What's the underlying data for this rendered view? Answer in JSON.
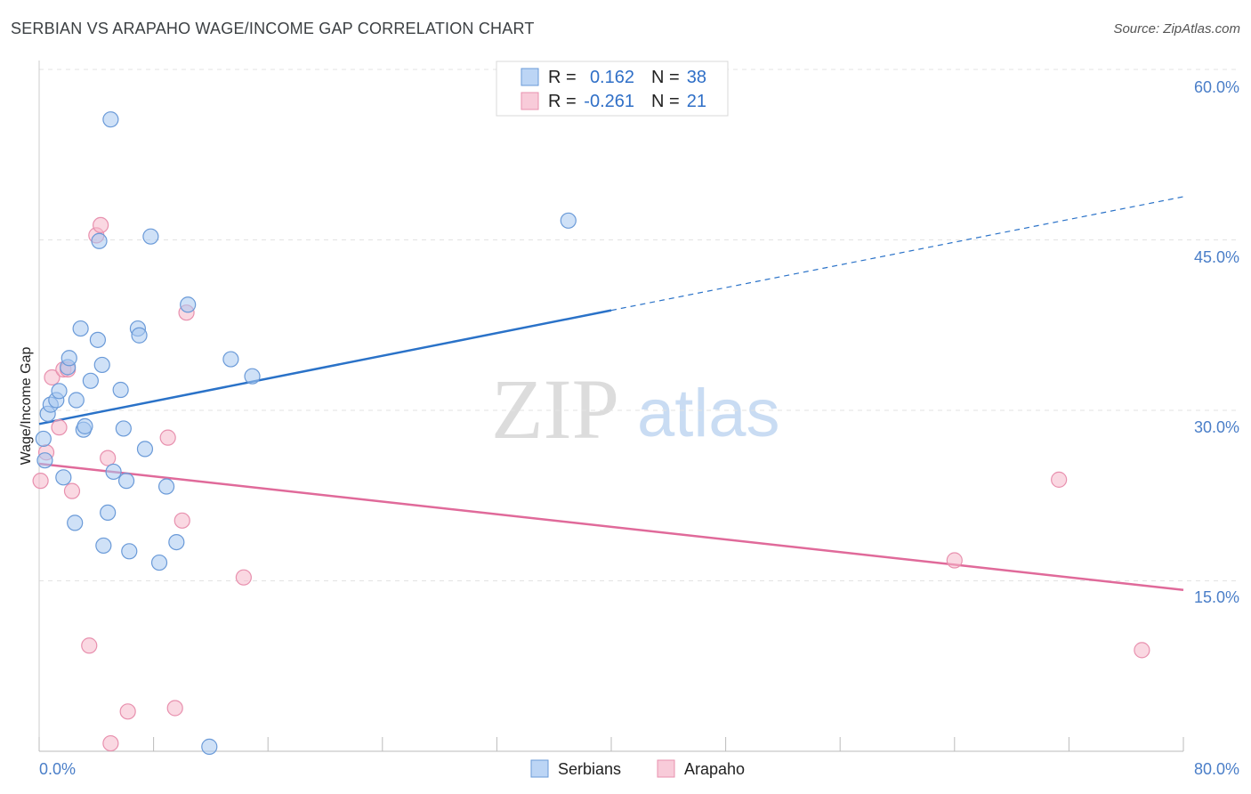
{
  "title": "SERBIAN VS ARAPAHO WAGE/INCOME GAP CORRELATION CHART",
  "source": "Source: ZipAtlas.com",
  "watermark": {
    "zip": "ZIP",
    "atlas": "atlas"
  },
  "colors": {
    "serbians_fill": "#a8c8f0",
    "serbians_stroke": "#6a9ad8",
    "serbians_line": "#2a72c8",
    "arapaho_fill": "#f5b8cb",
    "arapaho_stroke": "#e890ae",
    "arapaho_line": "#e06a9a",
    "grid": "#e3e3e3",
    "tick_label": "#4a7ec8"
  },
  "legend": {
    "r_label": "R =",
    "n_label": "N =",
    "rows": [
      {
        "series": "Serbians",
        "r": "0.162",
        "n": "38"
      },
      {
        "series": "Arapaho",
        "r": "-0.261",
        "n": "21"
      }
    ]
  },
  "bottom_legend": [
    "Serbians",
    "Arapaho"
  ],
  "chart_data": {
    "type": "scatter",
    "title": "SERBIAN VS ARAPAHO WAGE/INCOME GAP CORRELATION CHART",
    "xlabel": "",
    "ylabel": "Wage/Income Gap",
    "xlim": [
      0,
      80
    ],
    "ylim": [
      0,
      60
    ],
    "x_tick_labels": [
      "0.0%",
      "80.0%"
    ],
    "y_ticks": [
      15,
      30,
      45,
      60
    ],
    "y_tick_labels": [
      "15.0%",
      "30.0%",
      "45.0%",
      "60.0%"
    ],
    "x_minor_ticks": [
      0,
      8,
      16,
      24,
      32,
      40,
      48,
      56,
      64,
      72,
      80
    ],
    "grid": true,
    "series": [
      {
        "name": "Serbians",
        "points": [
          [
            0.6,
            29.7
          ],
          [
            0.8,
            30.5
          ],
          [
            1.2,
            30.9
          ],
          [
            1.4,
            31.7
          ],
          [
            2.0,
            33.8
          ],
          [
            2.1,
            34.6
          ],
          [
            2.6,
            30.9
          ],
          [
            2.5,
            20.1
          ],
          [
            2.9,
            37.2
          ],
          [
            3.1,
            28.3
          ],
          [
            3.2,
            28.6
          ],
          [
            3.6,
            32.6
          ],
          [
            4.1,
            36.2
          ],
          [
            4.2,
            44.9
          ],
          [
            4.4,
            34.0
          ],
          [
            4.5,
            18.1
          ],
          [
            4.8,
            21.0
          ],
          [
            5.0,
            55.6
          ],
          [
            5.2,
            24.6
          ],
          [
            5.7,
            31.8
          ],
          [
            5.9,
            28.4
          ],
          [
            6.1,
            23.8
          ],
          [
            6.3,
            17.6
          ],
          [
            6.9,
            37.2
          ],
          [
            7.0,
            36.6
          ],
          [
            7.4,
            26.6
          ],
          [
            7.8,
            45.3
          ],
          [
            8.4,
            16.6
          ],
          [
            8.9,
            23.3
          ],
          [
            9.6,
            18.4
          ],
          [
            10.4,
            39.3
          ],
          [
            11.9,
            0.4
          ],
          [
            13.4,
            34.5
          ],
          [
            14.9,
            33.0
          ],
          [
            37.0,
            46.7
          ],
          [
            0.3,
            27.5
          ],
          [
            0.4,
            25.6
          ],
          [
            1.7,
            24.1
          ]
        ]
      },
      {
        "name": "Arapaho",
        "points": [
          [
            0.1,
            23.8
          ],
          [
            0.5,
            26.3
          ],
          [
            0.9,
            32.9
          ],
          [
            1.4,
            28.5
          ],
          [
            1.7,
            33.6
          ],
          [
            2.0,
            33.6
          ],
          [
            2.3,
            22.9
          ],
          [
            3.5,
            9.3
          ],
          [
            4.0,
            45.4
          ],
          [
            4.3,
            46.3
          ],
          [
            4.8,
            25.8
          ],
          [
            5.0,
            0.7
          ],
          [
            6.2,
            3.5
          ],
          [
            9.0,
            27.6
          ],
          [
            9.5,
            3.8
          ],
          [
            10.0,
            20.3
          ],
          [
            10.3,
            38.6
          ],
          [
            14.3,
            15.3
          ],
          [
            64.0,
            16.8
          ],
          [
            71.3,
            23.9
          ],
          [
            77.1,
            8.9
          ]
        ]
      }
    ],
    "trend_lines": [
      {
        "series": "Serbians",
        "x": [
          0,
          40,
          80
        ],
        "y": [
          28.8,
          38.8,
          48.8
        ],
        "solid_until": 40
      },
      {
        "series": "Arapaho",
        "x": [
          0,
          80
        ],
        "y": [
          25.3,
          14.2
        ],
        "solid_until": 80
      }
    ]
  }
}
